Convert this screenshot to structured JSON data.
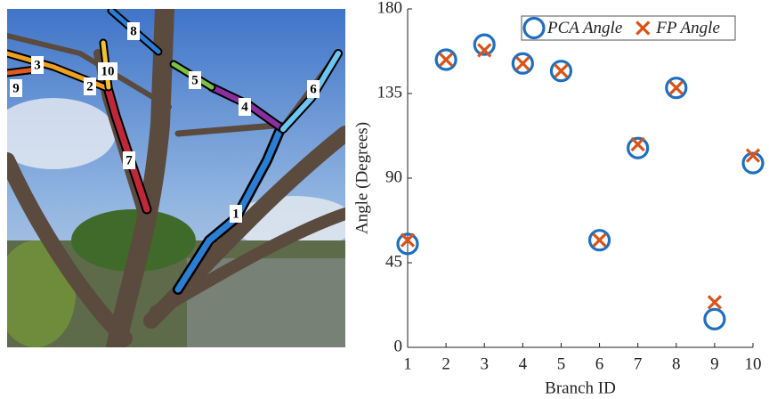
{
  "image": {
    "branch_labels": [
      "1",
      "2",
      "3",
      "4",
      "5",
      "6",
      "7",
      "8",
      "9",
      "10"
    ]
  },
  "chart_data": {
    "type": "scatter",
    "x_label": "Branch ID",
    "y_label": "Angle (Degrees)",
    "x": [
      1,
      2,
      3,
      4,
      5,
      6,
      7,
      8,
      9,
      10
    ],
    "series": [
      {
        "name": "PCA Angle",
        "color": "#1f6fc0",
        "marker": "circle",
        "values": [
          55,
          153,
          161,
          151,
          147,
          57,
          106,
          138,
          15,
          98
        ]
      },
      {
        "name": "FP Angle",
        "color": "#d95319",
        "marker": "x",
        "values": [
          57,
          153,
          158,
          151,
          147,
          57,
          108,
          138,
          24,
          102
        ]
      }
    ],
    "xlim": [
      1,
      10
    ],
    "xticks": [
      1,
      2,
      3,
      4,
      5,
      6,
      7,
      8,
      9,
      10
    ],
    "ylim": [
      0,
      180
    ],
    "yticks": [
      0,
      45,
      90,
      135,
      180
    ],
    "legend": "top-right"
  }
}
